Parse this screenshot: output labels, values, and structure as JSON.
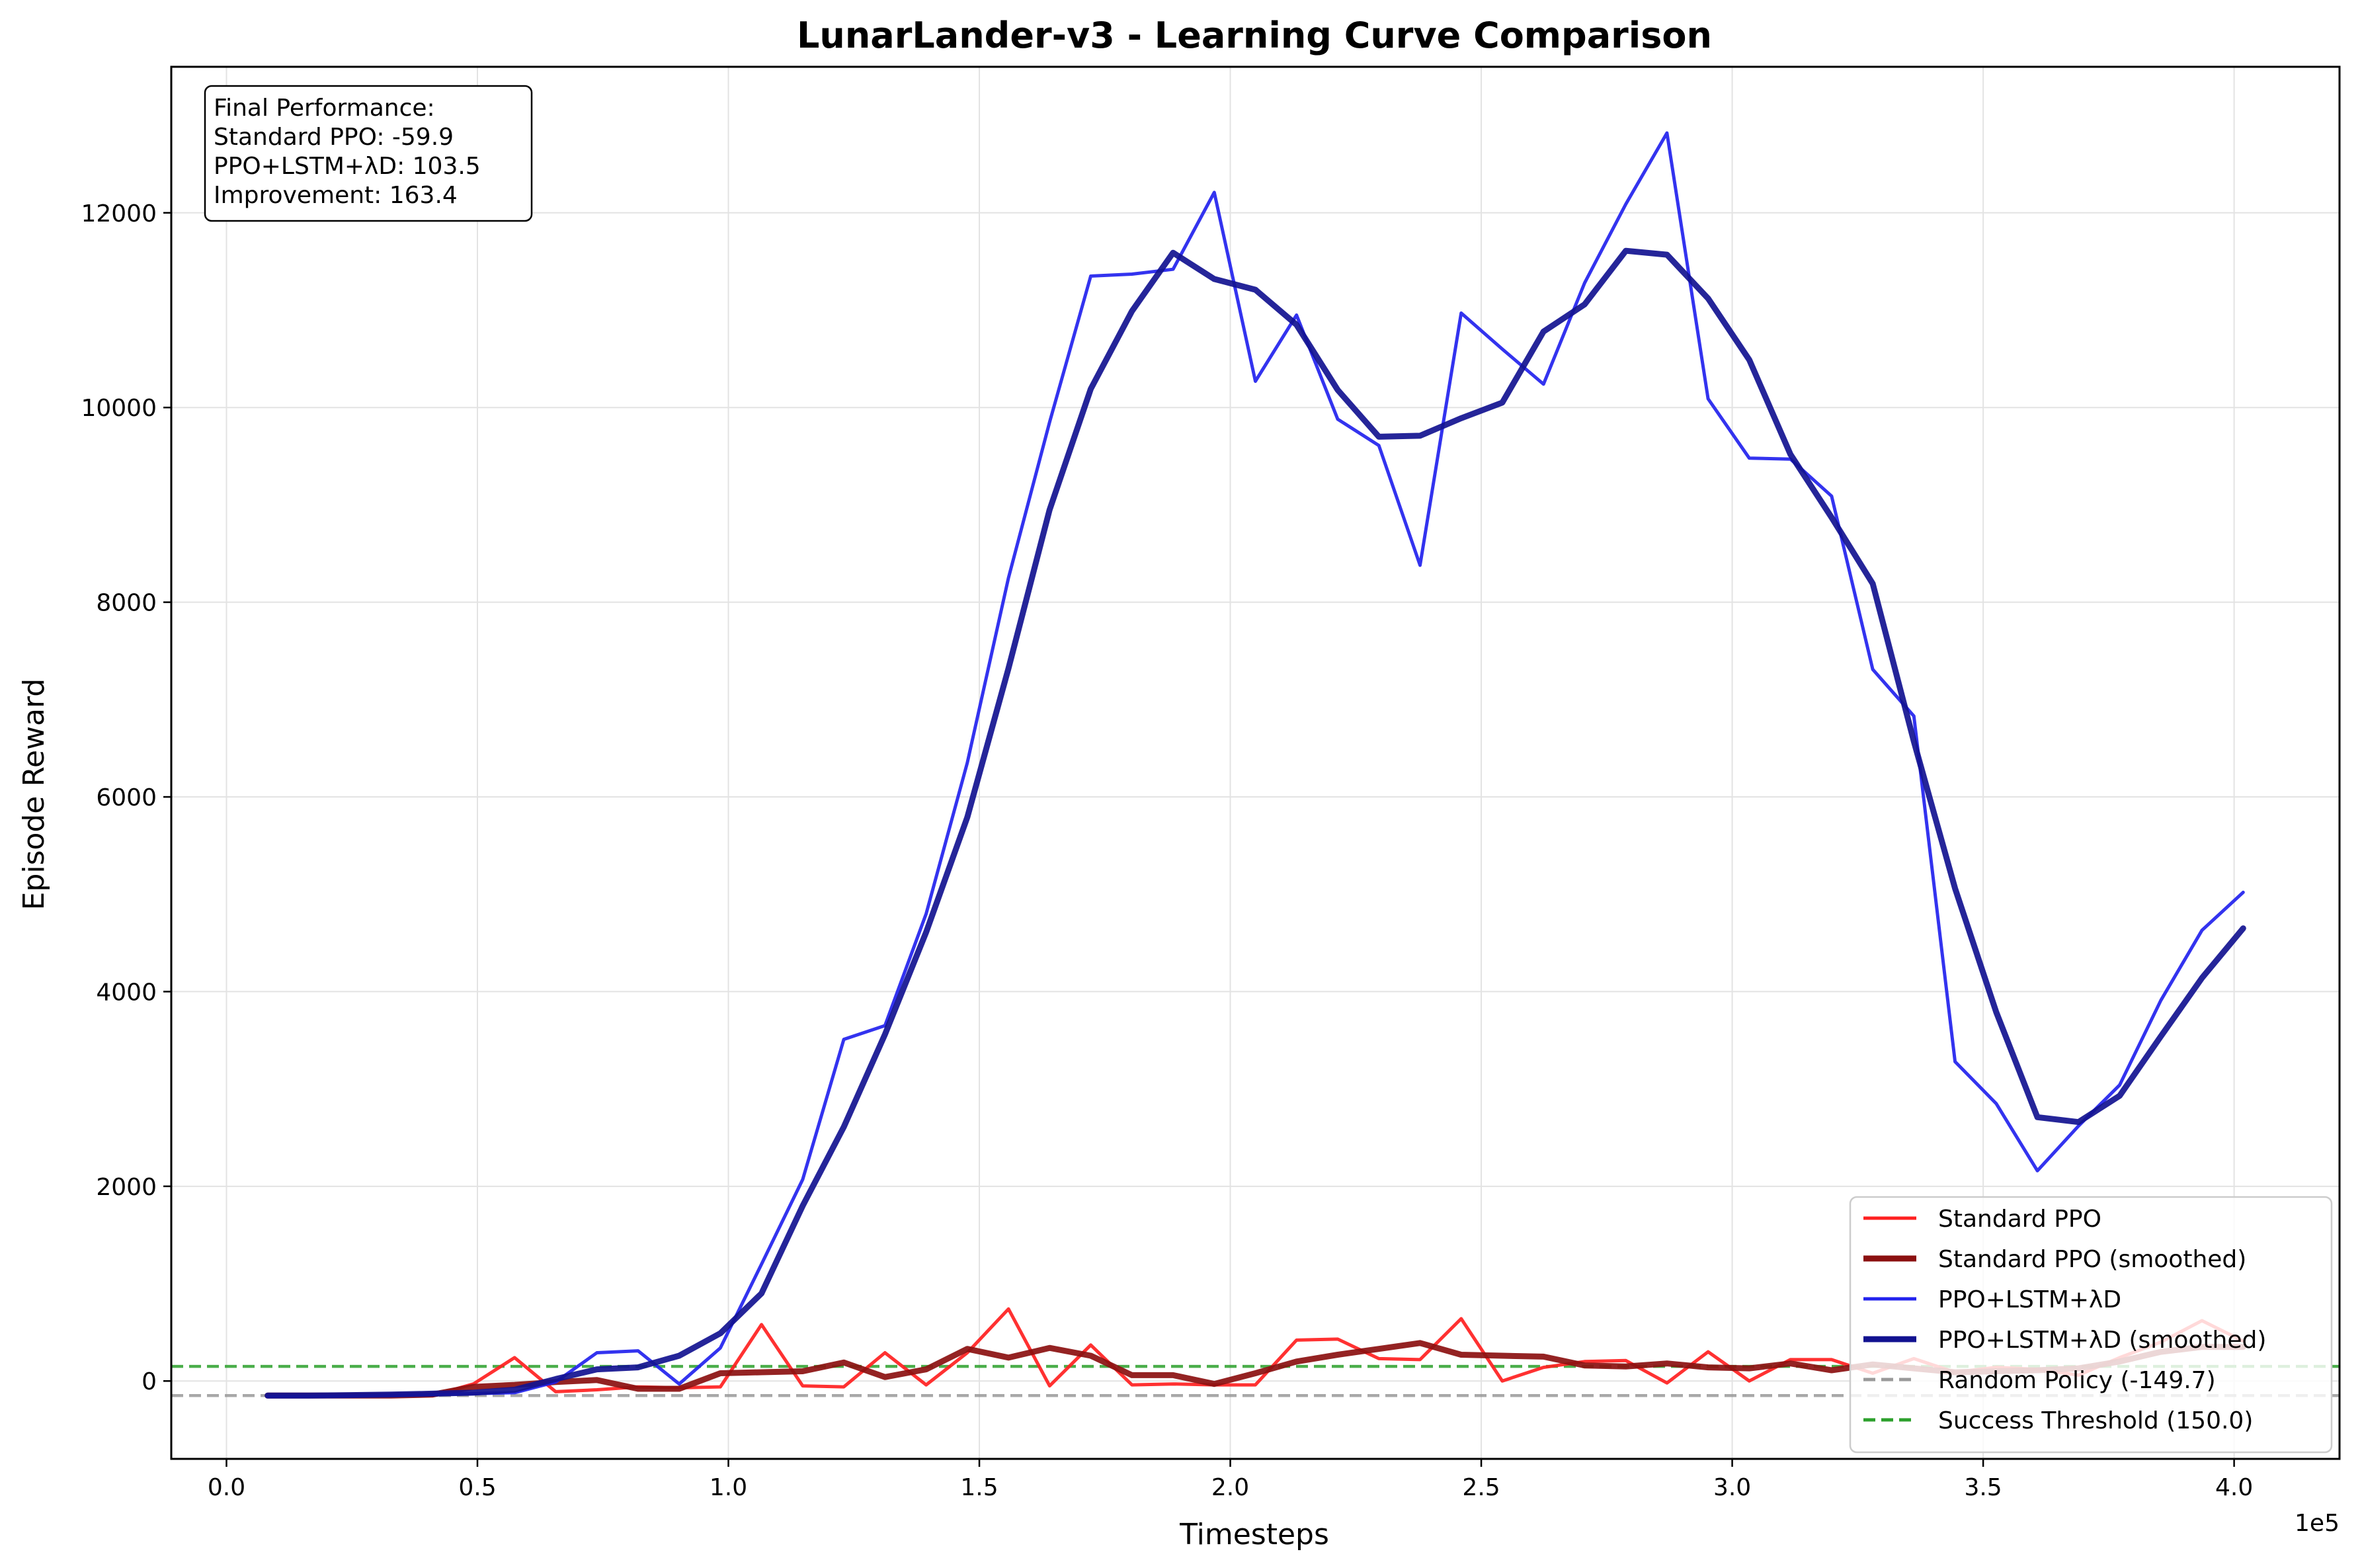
{
  "chart_data": {
    "type": "line",
    "title": "LunarLander-v3 - Learning Curve Comparison",
    "xlabel": "Timesteps",
    "ylabel": "Episode Reward",
    "x_offset_label": "1e5",
    "xlim": [
      -0.11,
      4.21
    ],
    "ylim": [
      -800,
      13500
    ],
    "x_ticks": [
      0,
      0.5,
      1.0,
      1.5,
      2.0,
      2.5,
      3.0,
      3.5,
      4.0
    ],
    "x_tick_labels": [
      "0.0",
      "0.5",
      "1.0",
      "1.5",
      "2.0",
      "2.5",
      "3.0",
      "3.5",
      "4.0"
    ],
    "y_ticks": [
      0,
      2000,
      4000,
      6000,
      8000,
      10000,
      12000
    ],
    "y_tick_labels": [
      "0",
      "2000",
      "4000",
      "6000",
      "8000",
      "10000",
      "12000"
    ],
    "grid": true,
    "legend_position": "bottom-right",
    "x": [
      0.082,
      0.164,
      0.246,
      0.328,
      0.41,
      0.492,
      0.574,
      0.656,
      0.738,
      0.82,
      0.902,
      0.984,
      1.066,
      1.148,
      1.23,
      1.312,
      1.394,
      1.476,
      1.558,
      1.64,
      1.722,
      1.804,
      1.886,
      1.968,
      2.05,
      2.132,
      2.214,
      2.296,
      2.378,
      2.46,
      2.542,
      2.624,
      2.706,
      2.788,
      2.87,
      2.952,
      3.034,
      3.116,
      3.198,
      3.28,
      3.362,
      3.444,
      3.526,
      3.608,
      3.69,
      3.772,
      3.854,
      3.936,
      4.018
    ],
    "series": [
      {
        "name": "Standard PPO",
        "color": "#ff2020",
        "width": 5,
        "values": [
          -160,
          -160,
          -155,
          -150,
          -150,
          -30,
          240,
          -110,
          -90,
          -60,
          -70,
          -60,
          580,
          -50,
          -60,
          290,
          -40,
          290,
          740,
          -50,
          370,
          -40,
          -30,
          -40,
          -40,
          420,
          430,
          230,
          220,
          640,
          0,
          140,
          200,
          210,
          -20,
          300,
          0,
          220,
          220,
          80,
          230,
          90,
          140,
          120,
          60,
          240,
          400,
          620,
          410
        ]
      },
      {
        "name": "Standard PPO (smoothed)",
        "color": "#8b1010",
        "width": 9,
        "values": [
          -150,
          -150,
          -150,
          -150,
          -140,
          -60,
          -40,
          -10,
          10,
          -80,
          -80,
          80,
          90,
          100,
          190,
          40,
          120,
          330,
          240,
          340,
          260,
          60,
          60,
          -30,
          80,
          200,
          270,
          330,
          390,
          270,
          260,
          250,
          160,
          150,
          180,
          140,
          130,
          180,
          110,
          170,
          130,
          90,
          100,
          110,
          130,
          200,
          300,
          350,
          350
        ]
      },
      {
        "name": "PPO+LSTM+λD",
        "color": "#2222ee",
        "width": 5,
        "values": [
          -160,
          -160,
          -155,
          -145,
          -140,
          -130,
          -120,
          -10,
          290,
          310,
          -30,
          340,
          1200,
          2070,
          3510,
          3650,
          4800,
          6350,
          8250,
          9850,
          11350,
          11370,
          11420,
          12210,
          10270,
          10950,
          9880,
          9610,
          8380,
          10970,
          10600,
          10240,
          11280,
          12090,
          12820,
          10090,
          9480,
          9470,
          9090,
          7310,
          6830,
          3280,
          2850,
          2160,
          2620,
          3040,
          3910,
          4630,
          5020
        ]
      },
      {
        "name": "PPO+LSTM+λD (smoothed)",
        "color": "#121290",
        "width": 9,
        "values": [
          -150,
          -150,
          -145,
          -140,
          -130,
          -120,
          -90,
          20,
          120,
          140,
          260,
          490,
          900,
          1800,
          2610,
          3560,
          4610,
          5790,
          7320,
          8950,
          10190,
          10990,
          11590,
          11320,
          11210,
          10850,
          10180,
          9700,
          9710,
          9890,
          10050,
          10780,
          11060,
          11610,
          11570,
          11120,
          10490,
          9520,
          8870,
          8190,
          6570,
          5060,
          3790,
          2710,
          2660,
          2930,
          3540,
          4140,
          4650
        ]
      }
    ],
    "reference_lines": [
      {
        "name": "Random Policy (-149.7)",
        "value": -149.7,
        "color": "#999999",
        "style": "dashed"
      },
      {
        "name": "Success Threshold (150.0)",
        "value": 150.0,
        "color": "#2ca02c",
        "style": "dashed"
      }
    ],
    "annotation": {
      "lines": [
        "Final Performance:",
        "Standard PPO: -59.9",
        "PPO+LSTM+λD: 103.5",
        "Improvement: 163.4"
      ]
    },
    "legend": [
      {
        "label": "Standard PPO",
        "color": "#ff2020",
        "style": "solid",
        "thick": false
      },
      {
        "label": "Standard PPO (smoothed)",
        "color": "#8b1010",
        "style": "solid",
        "thick": true
      },
      {
        "label": "PPO+LSTM+λD",
        "color": "#2222ee",
        "style": "solid",
        "thick": false
      },
      {
        "label": "PPO+LSTM+λD (smoothed)",
        "color": "#121290",
        "style": "solid",
        "thick": true
      },
      {
        "label": "Random Policy (-149.7)",
        "color": "#999999",
        "style": "dashed",
        "thick": false
      },
      {
        "label": "Success Threshold (150.0)",
        "color": "#2ca02c",
        "style": "dashed",
        "thick": false
      }
    ]
  }
}
